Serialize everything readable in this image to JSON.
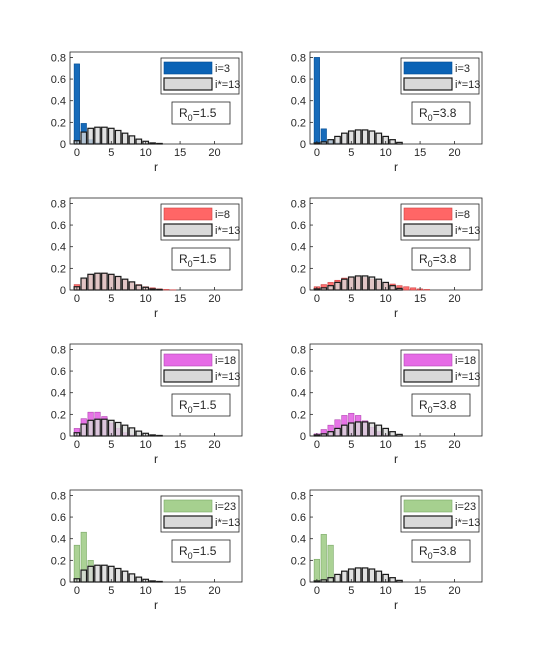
{
  "colors": {
    "axis": "#262626",
    "ref_fill": "#d9d9d9",
    "ref_edge": "#1a1a1a",
    "rows": [
      "#0b63b6",
      "#ff6666",
      "#e66be6",
      "#a6d08f"
    ],
    "row_edges": [
      "#004b92",
      "#cc3f3f",
      "#b347b3",
      "#7aa866"
    ]
  },
  "chart_data": [
    {
      "type": "bar",
      "position": "row 1, left",
      "xlabel": "r",
      "xlim": [
        -1,
        24
      ],
      "ylim": [
        0,
        0.85
      ],
      "xticks": [
        0,
        5,
        10,
        15,
        20
      ],
      "yticks": [
        0,
        0.2,
        0.4,
        0.6,
        0.8
      ],
      "ytick_labels": [
        "0",
        "0.2",
        "0.4",
        "0.6",
        "0.8"
      ],
      "legend": "top-right",
      "annotation": {
        "text": "R",
        "sub": "0",
        "value": "=1.5"
      },
      "series": [
        {
          "name": "i=3",
          "r": [
            0,
            1,
            2,
            3,
            4,
            5,
            6,
            7,
            8,
            9,
            10,
            11,
            12,
            13,
            14,
            15,
            16,
            17,
            18,
            19,
            20,
            21,
            22,
            23
          ],
          "values": [
            0.74,
            0.19,
            0.04,
            0.01,
            0.005,
            0,
            0,
            0,
            0,
            0,
            0,
            0,
            0,
            0,
            0,
            0,
            0,
            0,
            0,
            0,
            0,
            0,
            0,
            0
          ]
        },
        {
          "name": "i*=13",
          "r": [
            0,
            1,
            2,
            3,
            4,
            5,
            6,
            7,
            8,
            9,
            10,
            11,
            12
          ],
          "values": [
            0.03,
            0.11,
            0.145,
            0.155,
            0.155,
            0.145,
            0.125,
            0.1,
            0.075,
            0.045,
            0.025,
            0.01,
            0.005
          ]
        }
      ]
    },
    {
      "type": "bar",
      "position": "row 1, right",
      "xlabel": "r",
      "xlim": [
        -1,
        24
      ],
      "ylim": [
        0,
        0.85
      ],
      "xticks": [
        0,
        5,
        10,
        15,
        20
      ],
      "yticks": [
        0,
        0.2,
        0.4,
        0.6,
        0.8
      ],
      "ytick_labels": [
        "0",
        "0.2",
        "0.4",
        "0.6",
        "0.8"
      ],
      "legend": "top-right",
      "annotation": {
        "text": "R",
        "sub": "0",
        "value": "=3.8"
      },
      "series": [
        {
          "name": "i=3",
          "r": [
            0,
            1,
            2,
            3,
            4,
            5,
            6,
            7,
            8,
            9,
            10,
            11,
            12,
            13,
            14,
            15,
            16,
            17,
            18,
            19,
            20,
            21,
            22,
            23
          ],
          "values": [
            0.8,
            0.14,
            0.04,
            0.01,
            0,
            0,
            0,
            0,
            0,
            0,
            0,
            0,
            0,
            0,
            0,
            0,
            0,
            0,
            0,
            0,
            0,
            0,
            0,
            0
          ]
        },
        {
          "name": "i*=13",
          "r": [
            0,
            1,
            2,
            3,
            4,
            5,
            6,
            7,
            8,
            9,
            10,
            11,
            12
          ],
          "values": [
            0.01,
            0.02,
            0.04,
            0.07,
            0.1,
            0.12,
            0.13,
            0.13,
            0.12,
            0.1,
            0.07,
            0.04,
            0.015
          ]
        }
      ]
    },
    {
      "type": "bar",
      "position": "row 2, left",
      "xlabel": "r",
      "xlim": [
        -1,
        24
      ],
      "ylim": [
        0,
        0.85
      ],
      "xticks": [
        0,
        5,
        10,
        15,
        20
      ],
      "yticks": [
        0,
        0.2,
        0.4,
        0.6,
        0.8
      ],
      "ytick_labels": [
        "0",
        "0.2",
        "0.4",
        "0.6",
        "0.8"
      ],
      "legend": "top-right",
      "annotation": {
        "text": "R",
        "sub": "0",
        "value": "=1.5"
      },
      "series": [
        {
          "name": "i=8",
          "r": [
            0,
            1,
            2,
            3,
            4,
            5,
            6,
            7,
            8,
            9,
            10,
            11,
            12,
            13,
            14,
            15,
            16,
            17,
            18,
            19,
            20,
            21,
            22,
            23
          ],
          "values": [
            0.05,
            0.1,
            0.14,
            0.155,
            0.155,
            0.14,
            0.12,
            0.095,
            0.07,
            0.05,
            0.03,
            0.02,
            0.01,
            0.005,
            0.002,
            0,
            0,
            0,
            0,
            0,
            0,
            0,
            0,
            0
          ]
        },
        {
          "name": "i*=13",
          "r": [
            0,
            1,
            2,
            3,
            4,
            5,
            6,
            7,
            8,
            9,
            10,
            11,
            12
          ],
          "values": [
            0.03,
            0.11,
            0.145,
            0.155,
            0.155,
            0.145,
            0.125,
            0.1,
            0.075,
            0.045,
            0.025,
            0.01,
            0.005
          ]
        }
      ]
    },
    {
      "type": "bar",
      "position": "row 2, right",
      "xlabel": "r",
      "xlim": [
        -1,
        24
      ],
      "ylim": [
        0,
        0.85
      ],
      "xticks": [
        0,
        5,
        10,
        15,
        20
      ],
      "yticks": [
        0,
        0.2,
        0.4,
        0.6,
        0.8
      ],
      "ytick_labels": [
        "0",
        "0.2",
        "0.4",
        "0.6",
        "0.8"
      ],
      "legend": "top-right",
      "annotation": {
        "text": "R",
        "sub": "0",
        "value": "=3.8"
      },
      "series": [
        {
          "name": "i=8",
          "r": [
            0,
            1,
            2,
            3,
            4,
            5,
            6,
            7,
            8,
            9,
            10,
            11,
            12,
            13,
            14,
            15,
            16,
            17,
            18,
            19,
            20,
            21,
            22,
            23
          ],
          "values": [
            0.03,
            0.05,
            0.07,
            0.09,
            0.11,
            0.12,
            0.12,
            0.115,
            0.1,
            0.085,
            0.07,
            0.055,
            0.04,
            0.03,
            0.02,
            0.01,
            0.005,
            0,
            0,
            0,
            0,
            0,
            0,
            0
          ]
        },
        {
          "name": "i*=13",
          "r": [
            0,
            1,
            2,
            3,
            4,
            5,
            6,
            7,
            8,
            9,
            10,
            11,
            12
          ],
          "values": [
            0.01,
            0.02,
            0.04,
            0.07,
            0.1,
            0.12,
            0.13,
            0.13,
            0.12,
            0.1,
            0.07,
            0.04,
            0.015
          ]
        }
      ]
    },
    {
      "type": "bar",
      "position": "row 3, left",
      "xlabel": "r",
      "xlim": [
        -1,
        24
      ],
      "ylim": [
        0,
        0.85
      ],
      "xticks": [
        0,
        5,
        10,
        15,
        20
      ],
      "yticks": [
        0,
        0.2,
        0.4,
        0.6,
        0.8
      ],
      "ytick_labels": [
        "0",
        "0.2",
        "0.4",
        "0.6",
        "0.8"
      ],
      "legend": "top-right",
      "annotation": {
        "text": "R",
        "sub": "0",
        "value": "=1.5"
      },
      "series": [
        {
          "name": "i=18",
          "r": [
            0,
            1,
            2,
            3,
            4,
            5,
            6,
            7,
            8,
            9,
            10,
            11,
            12,
            13,
            14,
            15,
            16,
            17,
            18,
            19,
            20,
            21,
            22,
            23
          ],
          "values": [
            0.07,
            0.16,
            0.22,
            0.22,
            0.18,
            0.12,
            0.07,
            0.03,
            0.01,
            0,
            0,
            0,
            0,
            0,
            0,
            0,
            0,
            0,
            0,
            0,
            0,
            0,
            0,
            0
          ]
        },
        {
          "name": "i*=13",
          "r": [
            0,
            1,
            2,
            3,
            4,
            5,
            6,
            7,
            8,
            9,
            10,
            11,
            12
          ],
          "values": [
            0.03,
            0.11,
            0.145,
            0.155,
            0.155,
            0.145,
            0.125,
            0.1,
            0.075,
            0.045,
            0.025,
            0.01,
            0.005
          ]
        }
      ]
    },
    {
      "type": "bar",
      "position": "row 3, right",
      "xlabel": "r",
      "xlim": [
        -1,
        24
      ],
      "ylim": [
        0,
        0.85
      ],
      "xticks": [
        0,
        5,
        10,
        15,
        20
      ],
      "yticks": [
        0,
        0.2,
        0.4,
        0.6,
        0.8
      ],
      "ytick_labels": [
        "0",
        "0.2",
        "0.4",
        "0.6",
        "0.8"
      ],
      "legend": "top-right",
      "annotation": {
        "text": "R",
        "sub": "0",
        "value": "=3.8"
      },
      "series": [
        {
          "name": "i=18",
          "r": [
            0,
            1,
            2,
            3,
            4,
            5,
            6,
            7,
            8,
            9,
            10,
            11,
            12,
            13,
            14,
            15,
            16,
            17,
            18,
            19,
            20,
            21,
            22,
            23
          ],
          "values": [
            0.02,
            0.06,
            0.1,
            0.15,
            0.19,
            0.21,
            0.19,
            0.14,
            0.08,
            0.04,
            0.01,
            0,
            0,
            0,
            0,
            0,
            0,
            0,
            0,
            0,
            0,
            0,
            0,
            0
          ]
        },
        {
          "name": "i*=13",
          "r": [
            0,
            1,
            2,
            3,
            4,
            5,
            6,
            7,
            8,
            9,
            10,
            11,
            12
          ],
          "values": [
            0.01,
            0.02,
            0.04,
            0.07,
            0.1,
            0.12,
            0.13,
            0.13,
            0.12,
            0.1,
            0.07,
            0.04,
            0.015
          ]
        }
      ]
    },
    {
      "type": "bar",
      "position": "row 4, left",
      "xlabel": "r",
      "xlim": [
        -1,
        24
      ],
      "ylim": [
        0,
        0.85
      ],
      "xticks": [
        0,
        5,
        10,
        15,
        20
      ],
      "yticks": [
        0,
        0.2,
        0.4,
        0.6,
        0.8
      ],
      "ytick_labels": [
        "0",
        "0.2",
        "0.4",
        "0.6",
        "0.8"
      ],
      "legend": "top-right",
      "annotation": {
        "text": "R",
        "sub": "0",
        "value": "=1.5"
      },
      "series": [
        {
          "name": "i=23",
          "r": [
            0,
            1,
            2,
            3,
            4,
            5,
            6,
            7,
            8,
            9,
            10,
            11,
            12,
            13,
            14,
            15,
            16,
            17,
            18,
            19,
            20,
            21,
            22,
            23
          ],
          "values": [
            0.34,
            0.46,
            0.2,
            0,
            0,
            0,
            0,
            0,
            0,
            0,
            0,
            0,
            0,
            0,
            0,
            0,
            0,
            0,
            0,
            0,
            0,
            0,
            0,
            0
          ]
        },
        {
          "name": "i*=13",
          "r": [
            0,
            1,
            2,
            3,
            4,
            5,
            6,
            7,
            8,
            9,
            10,
            11,
            12
          ],
          "values": [
            0.03,
            0.11,
            0.145,
            0.155,
            0.155,
            0.145,
            0.125,
            0.1,
            0.075,
            0.045,
            0.025,
            0.01,
            0.005
          ]
        }
      ]
    },
    {
      "type": "bar",
      "position": "row 4, right",
      "xlabel": "r",
      "xlim": [
        -1,
        24
      ],
      "ylim": [
        0,
        0.85
      ],
      "xticks": [
        0,
        5,
        10,
        15,
        20
      ],
      "yticks": [
        0,
        0.2,
        0.4,
        0.6,
        0.8
      ],
      "ytick_labels": [
        "0",
        "0.2",
        "0.4",
        "0.6",
        "0.8"
      ],
      "legend": "top-right",
      "annotation": {
        "text": "R",
        "sub": "0",
        "value": "=3.8"
      },
      "series": [
        {
          "name": "i=23",
          "r": [
            0,
            1,
            2,
            3,
            4,
            5,
            6,
            7,
            8,
            9,
            10,
            11,
            12,
            13,
            14,
            15,
            16,
            17,
            18,
            19,
            20,
            21,
            22,
            23
          ],
          "values": [
            0.21,
            0.44,
            0.34,
            0.01,
            0,
            0,
            0,
            0,
            0,
            0,
            0,
            0,
            0,
            0,
            0,
            0,
            0,
            0,
            0,
            0,
            0,
            0,
            0,
            0
          ]
        },
        {
          "name": "i*=13",
          "r": [
            0,
            1,
            2,
            3,
            4,
            5,
            6,
            7,
            8,
            9,
            10,
            11,
            12
          ],
          "values": [
            0.01,
            0.02,
            0.04,
            0.07,
            0.1,
            0.12,
            0.13,
            0.13,
            0.12,
            0.1,
            0.07,
            0.04,
            0.015
          ]
        }
      ]
    }
  ]
}
